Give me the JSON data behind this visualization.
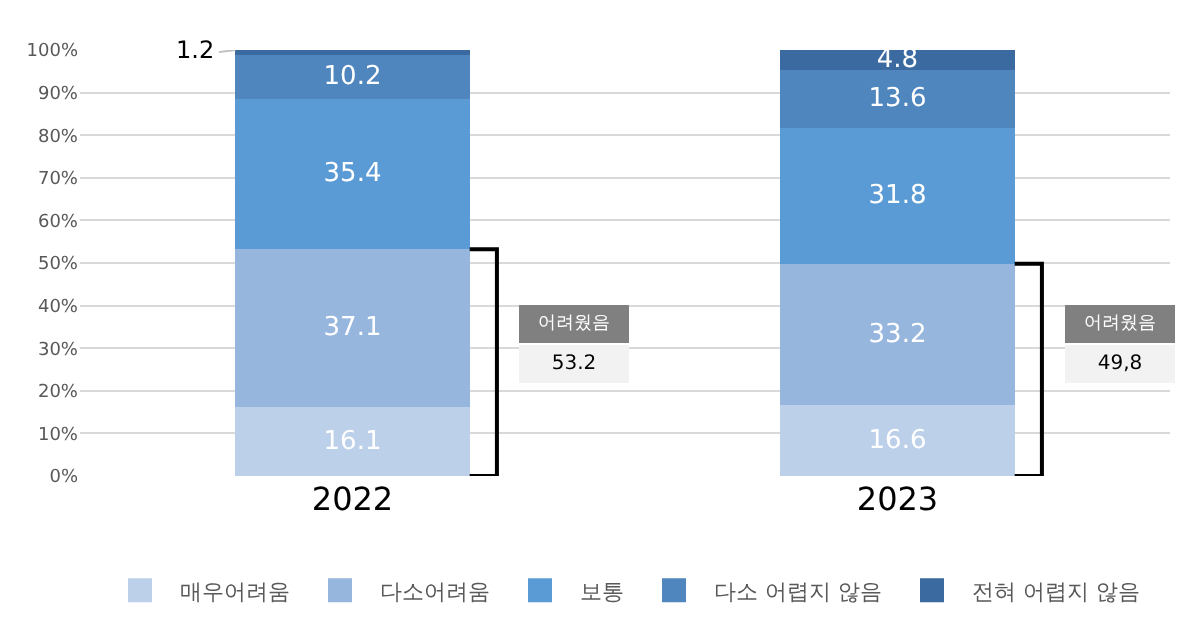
{
  "chart_data": {
    "type": "bar",
    "stacked": true,
    "categories": [
      "2022",
      "2023"
    ],
    "series": [
      {
        "name": "매우어려움",
        "color": "#bdd0ea",
        "values": [
          16.1,
          16.6
        ]
      },
      {
        "name": "다소어려움",
        "color": "#96b6de",
        "values": [
          37.1,
          33.2
        ]
      },
      {
        "name": "보통",
        "color": "#5b9bd5",
        "values": [
          35.4,
          31.8
        ]
      },
      {
        "name": "다소 어렵지 않음",
        "color": "#4f86bd",
        "values": [
          10.2,
          13.6
        ]
      },
      {
        "name": "전혀 어렵지 않음",
        "color": "#3a6aa0",
        "values": [
          1.2,
          4.8
        ]
      }
    ],
    "ylim": [
      0,
      100
    ],
    "yticks": [
      {
        "value": 0,
        "label": "0%"
      },
      {
        "value": 10,
        "label": "10%"
      },
      {
        "value": 20,
        "label": "20%"
      },
      {
        "value": 30,
        "label": "30%"
      },
      {
        "value": 40,
        "label": "40%"
      },
      {
        "value": 50,
        "label": "50%"
      },
      {
        "value": 60,
        "label": "60%"
      },
      {
        "value": 70,
        "label": "70%"
      },
      {
        "value": 80,
        "label": "80%"
      },
      {
        "value": 90,
        "label": "90%"
      },
      {
        "value": 100,
        "label": "100%"
      }
    ],
    "annotations": [
      "어려웠음",
      "53.2",
      "어려웠음",
      "49,8"
    ],
    "data_labels": true,
    "grid": "y",
    "legend": "bottom"
  }
}
